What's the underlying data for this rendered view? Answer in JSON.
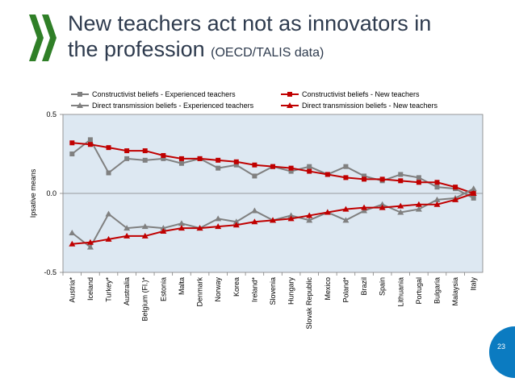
{
  "slide": {
    "title_line1": "New teachers act not as innovators in",
    "title_line2": "the profession",
    "title_source": "(OECD/TALIS data)",
    "page_number": "23",
    "colors": {
      "title": "#2e3b4e",
      "logo": "#2f7f27",
      "accent_tab": "#0b7bc1"
    }
  },
  "chart_data": {
    "type": "line",
    "ylabel": "Ipsative means",
    "ylim": [
      -0.5,
      0.5
    ],
    "yticks": [
      "0.5",
      "0.0",
      "-0.5"
    ],
    "ytick_values": [
      0.5,
      0.0,
      -0.5
    ],
    "plot_background": "#dde8f2",
    "legend_placement": "top",
    "categories": [
      "Austria*",
      "Iceland",
      "Turkey*",
      "Australia",
      "Belgium (Fl.)*",
      "Estonia",
      "Malta",
      "Denmark",
      "Norway",
      "Korea",
      "Ireland*",
      "Slovenia",
      "Hungary",
      "Slovak Republic",
      "Mexico",
      "Poland*",
      "Brazil",
      "Spain",
      "Lithuania",
      "Portugal",
      "Bulgaria",
      "Malaysia",
      "Italy"
    ],
    "series": [
      {
        "name": "Constructivist beliefs - Experienced teachers",
        "color": "#808080",
        "marker": "square",
        "values": [
          0.25,
          0.34,
          0.13,
          0.22,
          0.21,
          0.22,
          0.19,
          0.22,
          0.16,
          0.18,
          0.11,
          0.17,
          0.14,
          0.17,
          0.12,
          0.17,
          0.11,
          0.08,
          0.12,
          0.1,
          0.04,
          0.03,
          -0.03
        ]
      },
      {
        "name": "Constructivist beliefs - New teachers",
        "color": "#c00000",
        "marker": "square",
        "values": [
          0.32,
          0.31,
          0.29,
          0.27,
          0.27,
          0.24,
          0.22,
          0.22,
          0.21,
          0.2,
          0.18,
          0.17,
          0.16,
          0.14,
          0.12,
          0.1,
          0.09,
          0.09,
          0.08,
          0.07,
          0.07,
          0.04,
          0.0
        ]
      },
      {
        "name": "Direct transmission beliefs - Experienced teachers",
        "color": "#808080",
        "marker": "triangle",
        "values": [
          -0.25,
          -0.34,
          -0.13,
          -0.22,
          -0.21,
          -0.22,
          -0.19,
          -0.22,
          -0.16,
          -0.18,
          -0.11,
          -0.17,
          -0.14,
          -0.17,
          -0.12,
          -0.17,
          -0.11,
          -0.07,
          -0.12,
          -0.1,
          -0.04,
          -0.03,
          0.03
        ]
      },
      {
        "name": "Direct transmission beliefs - New teachers",
        "color": "#c00000",
        "marker": "triangle",
        "values": [
          -0.32,
          -0.31,
          -0.29,
          -0.27,
          -0.27,
          -0.24,
          -0.22,
          -0.22,
          -0.21,
          -0.2,
          -0.18,
          -0.17,
          -0.16,
          -0.14,
          -0.12,
          -0.1,
          -0.09,
          -0.09,
          -0.08,
          -0.07,
          -0.07,
          -0.04,
          0.0
        ]
      }
    ]
  }
}
